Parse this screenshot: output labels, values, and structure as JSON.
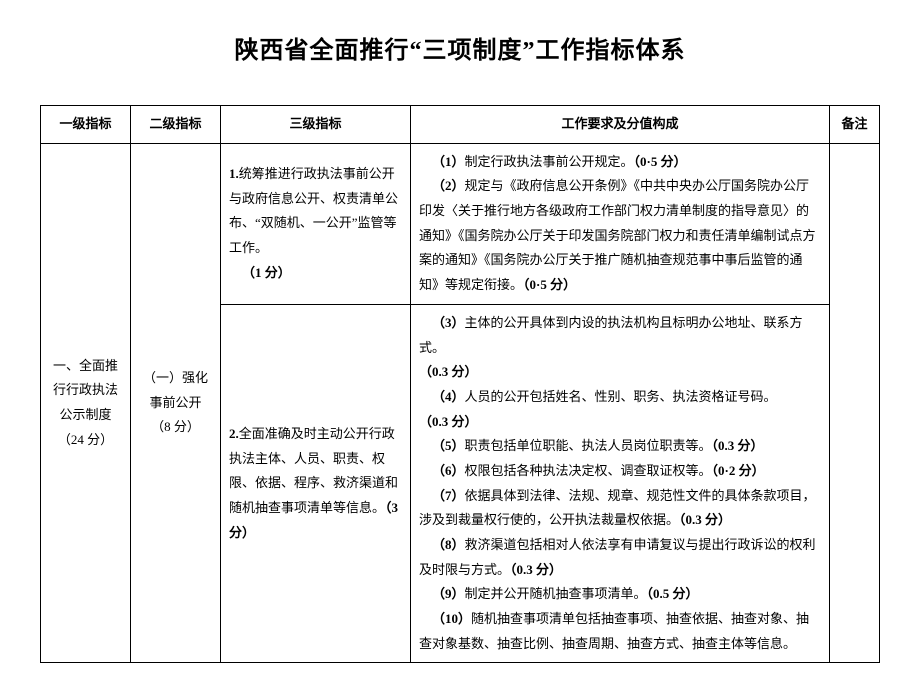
{
  "title": "陕西省全面推行“三项制度”工作指标体系",
  "headers": {
    "c1": "一级指标",
    "c2": "二级指标",
    "c3": "三级指标",
    "c4": "工作要求及分值构成",
    "c5": "备注"
  },
  "lvl1": "一、全面推行行政执法公示制度\n（24 分）",
  "lvl2": "（一）强化事前公开\n（8 分）",
  "row1": {
    "lvl3_a": "1.",
    "lvl3_b": "统筹推进行政执法事前公开与政府信息公开、权责清单公布、“双随机、一公开”监管等工作。",
    "lvl3_c": "（1 分）",
    "req_a": "（1）",
    "req_a2": "制定行政执法事前公开规定。",
    "req_a3": "（0·5 分）",
    "req_b": "（2）",
    "req_b2": "规定与《政府信息公开条例》《中共中央办公厅国务院办公厅印发〈关于推行地方各级政府工作部门权力清单制度的指导意见〉的通知》《国务院办公厅关于印发国务院部门权力和责任清单编制试点方案的通知》《国务院办公厅关于推广随机抽查规范事中事后监管的通知》等规定衔接。",
    "req_b3": "（0·5 分）"
  },
  "row2": {
    "lvl3_a": "2.",
    "lvl3_b": "全面准确及时主动公开行政执法主体、人员、职责、权限、依据、程序、救济渠道和随机抽查事项清单等信息。",
    "lvl3_c": "（3分）",
    "i3a": "（3）",
    "i3b": "主体的公开具体到内设的执法机构且标明办公地址、联系方式。",
    "i3c": "（0.3 分）",
    "i4a": "（4）",
    "i4b": "人员的公开包括姓名、性别、职务、执法资格证号码。",
    "i4c": "（0.3 分）",
    "i5a": "（5）",
    "i5b": "职责包括单位职能、执法人员岗位职责等。",
    "i5c": "（0.3 分）",
    "i6a": "（6）",
    "i6b": "权限包括各种执法决定权、调查取证权等。",
    "i6c": "（0·2 分）",
    "i7a": "（7）",
    "i7b": "依据具体到法律、法规、规章、规范性文件的具体条款项目，涉及到裁量权行使的，公开执法裁量权依据。",
    "i7c": "（0.3 分）",
    "i8a": "（8）",
    "i8b": "救济渠道包括相对人依法享有申请复议与提出行政诉讼的权利及时限与方式。",
    "i8c": "（0.3 分）",
    "i9a": "（9）",
    "i9b": "制定并公开随机抽查事项清单。",
    "i9c": "（0.5 分）",
    "i10a": "（10）",
    "i10b": "随机抽查事项清单包括抽查事项、抽查依据、抽查对象、抽查对象基数、抽查比例、抽查周期、抽查方式、抽查主体等信息。"
  }
}
